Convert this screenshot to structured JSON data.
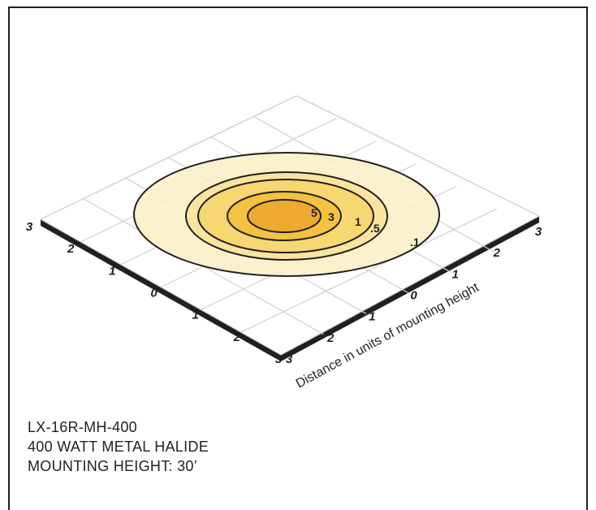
{
  "diagram": {
    "axis_label": "Distance in units of mounting height",
    "left_axis_ticks": [
      "3",
      "2",
      "1",
      "0",
      "1",
      "2",
      "3"
    ],
    "right_axis_ticks": [
      "3",
      "2",
      "1",
      "0",
      "1",
      "2",
      "3"
    ],
    "contours": [
      {
        "label": ".1",
        "color": "#faf0c6"
      },
      {
        "label": ".5",
        "color": "#f8e29a"
      },
      {
        "label": "1",
        "color": "#f6d56a"
      },
      {
        "label": "3",
        "color": "#f2bf3a"
      },
      {
        "label": "5",
        "color": "#eda62e"
      }
    ]
  },
  "info": {
    "model": "LX-16R-MH-400",
    "lamp": "400 WATT METAL HALIDE",
    "mounting_height": "MOUNTING HEIGHT: 30’"
  }
}
